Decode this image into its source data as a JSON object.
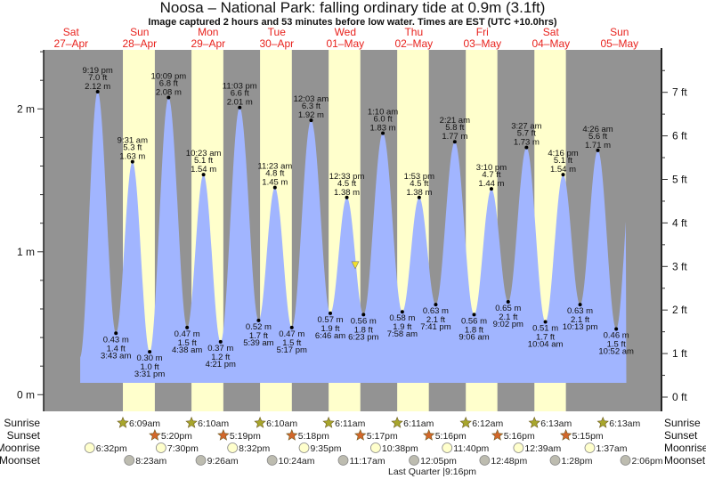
{
  "header": {
    "title": "Noosa – National Park: falling  ordinary tide at 0.9m (3.1ft)",
    "subtitle": "Image captured 2 hours and 53 minutes before low water. Times are EST (UTC +10.0hrs)"
  },
  "chart_data": {
    "type": "area",
    "days": [
      {
        "weekday": "Sat",
        "date": "27–Apr"
      },
      {
        "weekday": "Sun",
        "date": "28–Apr"
      },
      {
        "weekday": "Mon",
        "date": "29–Apr"
      },
      {
        "weekday": "Tue",
        "date": "30–Apr"
      },
      {
        "weekday": "Wed",
        "date": "01–May"
      },
      {
        "weekday": "Thu",
        "date": "02–May"
      },
      {
        "weekday": "Fri",
        "date": "03–May"
      },
      {
        "weekday": "Sat",
        "date": "04–May"
      },
      {
        "weekday": "Sun",
        "date": "05–May"
      }
    ],
    "y_left": {
      "unit": "m",
      "ticks": [
        "0 m",
        "1 m",
        "2 m"
      ],
      "range_m": [
        -0.12,
        2.41
      ]
    },
    "y_right": {
      "unit": "ft",
      "ticks": [
        "0 ft",
        "1 ft",
        "2 ft",
        "3 ft",
        "4 ft",
        "5 ft",
        "6 ft",
        "7 ft"
      ]
    },
    "grid": false,
    "colors": {
      "night": "#939393",
      "day": "#ffffcc",
      "tide": "#a1b5ff",
      "day_label": "#e8231e",
      "current_marker": "#f2e02a"
    },
    "current": {
      "day": 4,
      "time": "3:30 pm",
      "height_m": 0.9
    },
    "extremes": [
      {
        "day": 0,
        "type": "high",
        "time": "9:19 pm",
        "ft": "7.0 ft",
        "m": "2.12 m",
        "value": 2.12
      },
      {
        "day": 1,
        "type": "low",
        "time": "3:43 am",
        "ft": "1.4 ft",
        "m": "0.43 m",
        "value": 0.43
      },
      {
        "day": 1,
        "type": "high",
        "time": "9:31 am",
        "ft": "5.3 ft",
        "m": "1.63 m",
        "value": 1.63
      },
      {
        "day": 1,
        "type": "low",
        "time": "3:31 pm",
        "ft": "1.0 ft",
        "m": "0.30 m",
        "value": 0.3
      },
      {
        "day": 1,
        "type": "high",
        "time": "10:09 pm",
        "ft": "6.8 ft",
        "m": "2.08 m",
        "value": 2.08
      },
      {
        "day": 2,
        "type": "low",
        "time": "4:38 am",
        "ft": "1.5 ft",
        "m": "0.47 m",
        "value": 0.47
      },
      {
        "day": 2,
        "type": "high",
        "time": "10:23 am",
        "ft": "5.1 ft",
        "m": "1.54 m",
        "value": 1.54
      },
      {
        "day": 2,
        "type": "low",
        "time": "4:21 pm",
        "ft": "1.2 ft",
        "m": "0.37 m",
        "value": 0.37
      },
      {
        "day": 2,
        "type": "high",
        "time": "11:03 pm",
        "ft": "6.6 ft",
        "m": "2.01 m",
        "value": 2.01
      },
      {
        "day": 3,
        "type": "low",
        "time": "5:39 am",
        "ft": "1.7 ft",
        "m": "0.52 m",
        "value": 0.52
      },
      {
        "day": 3,
        "type": "high",
        "time": "11:23 am",
        "ft": "4.8 ft",
        "m": "1.45 m",
        "value": 1.45
      },
      {
        "day": 3,
        "type": "low",
        "time": "5:17 pm",
        "ft": "1.5 ft",
        "m": "0.47 m",
        "value": 0.47
      },
      {
        "day": 4,
        "type": "high",
        "time": "12:03 am",
        "ft": "6.3 ft",
        "m": "1.92 m",
        "value": 1.92
      },
      {
        "day": 4,
        "type": "low",
        "time": "6:46 am",
        "ft": "1.9 ft",
        "m": "0.57 m",
        "value": 0.57
      },
      {
        "day": 4,
        "type": "high",
        "time": "12:33 pm",
        "ft": "4.5 ft",
        "m": "1.38 m",
        "value": 1.38
      },
      {
        "day": 4,
        "type": "low",
        "time": "6:23 pm",
        "ft": "1.8 ft",
        "m": "0.56 m",
        "value": 0.56
      },
      {
        "day": 5,
        "type": "high",
        "time": "1:10 am",
        "ft": "6.0 ft",
        "m": "1.83 m",
        "value": 1.83
      },
      {
        "day": 5,
        "type": "low",
        "time": "7:58 am",
        "ft": "1.9 ft",
        "m": "0.58 m",
        "value": 0.58
      },
      {
        "day": 5,
        "type": "high",
        "time": "1:53 pm",
        "ft": "4.5 ft",
        "m": "1.38 m",
        "value": 1.38
      },
      {
        "day": 5,
        "type": "low",
        "time": "7:41 pm",
        "ft": "2.1 ft",
        "m": "0.63 m",
        "value": 0.63
      },
      {
        "day": 6,
        "type": "high",
        "time": "2:21 am",
        "ft": "5.8 ft",
        "m": "1.77 m",
        "value": 1.77
      },
      {
        "day": 6,
        "type": "low",
        "time": "9:06 am",
        "ft": "1.8 ft",
        "m": "0.56 m",
        "value": 0.56
      },
      {
        "day": 6,
        "type": "high",
        "time": "3:10 pm",
        "ft": "4.7 ft",
        "m": "1.44 m",
        "value": 1.44
      },
      {
        "day": 6,
        "type": "low",
        "time": "9:02 pm",
        "ft": "2.1 ft",
        "m": "0.65 m",
        "value": 0.65
      },
      {
        "day": 7,
        "type": "high",
        "time": "3:27 am",
        "ft": "5.7 ft",
        "m": "1.73 m",
        "value": 1.73
      },
      {
        "day": 7,
        "type": "low",
        "time": "10:04 am",
        "ft": "1.7 ft",
        "m": "0.51 m",
        "value": 0.51
      },
      {
        "day": 7,
        "type": "high",
        "time": "4:16 pm",
        "ft": "5.1 ft",
        "m": "1.54 m",
        "value": 1.54
      },
      {
        "day": 7,
        "type": "low",
        "time": "10:13 pm",
        "ft": "2.1 ft",
        "m": "0.63 m",
        "value": 0.63
      },
      {
        "day": 8,
        "type": "high",
        "time": "4:26 am",
        "ft": "5.6 ft",
        "m": "1.71 m",
        "value": 1.71
      },
      {
        "day": 8,
        "type": "low",
        "time": "10:52 am",
        "ft": "1.5 ft",
        "m": "0.46 m",
        "value": 0.46
      }
    ]
  },
  "astro": {
    "labels": {
      "sunrise": "Sunrise",
      "sunset": "Sunset",
      "moonrise": "Moonrise",
      "moonset": "Moonset"
    },
    "sunrise": [
      {
        "day": 1,
        "time": "6:09am"
      },
      {
        "day": 2,
        "time": "6:10am"
      },
      {
        "day": 3,
        "time": "6:10am"
      },
      {
        "day": 4,
        "time": "6:11am"
      },
      {
        "day": 5,
        "time": "6:11am"
      },
      {
        "day": 6,
        "time": "6:12am"
      },
      {
        "day": 7,
        "time": "6:13am"
      },
      {
        "day": 8,
        "time": "6:13am"
      }
    ],
    "sunset": [
      {
        "day": 1,
        "time": "5:20pm"
      },
      {
        "day": 2,
        "time": "5:19pm"
      },
      {
        "day": 3,
        "time": "5:18pm"
      },
      {
        "day": 4,
        "time": "5:17pm"
      },
      {
        "day": 5,
        "time": "5:16pm"
      },
      {
        "day": 6,
        "time": "5:16pm"
      },
      {
        "day": 7,
        "time": "5:15pm"
      }
    ],
    "moonrise": [
      {
        "day": 0,
        "time": "6:32pm"
      },
      {
        "day": 1,
        "time": "7:30pm"
      },
      {
        "day": 2,
        "time": "8:32pm"
      },
      {
        "day": 3,
        "time": "9:35pm"
      },
      {
        "day": 4,
        "time": "10:38pm"
      },
      {
        "day": 5,
        "time": "11:40pm"
      },
      {
        "day": 7,
        "time": "12:39am"
      },
      {
        "day": 8,
        "time": "1:37am"
      }
    ],
    "moonset": [
      {
        "day": 1,
        "time": "8:23am"
      },
      {
        "day": 2,
        "time": "9:26am"
      },
      {
        "day": 3,
        "time": "10:24am"
      },
      {
        "day": 4,
        "time": "11:17am"
      },
      {
        "day": 5,
        "time": "12:05pm"
      },
      {
        "day": 6,
        "time": "12:48pm"
      },
      {
        "day": 7,
        "time": "1:28pm"
      },
      {
        "day": 8,
        "time": "2:06pm"
      }
    ],
    "moon_phase": "Last Quarter |9:16pm",
    "colors": {
      "sunrise": "#a8a62c",
      "sunset": "#d2672a",
      "moonrise": "#ffffcc",
      "moonset": "#bdbcb0"
    }
  }
}
